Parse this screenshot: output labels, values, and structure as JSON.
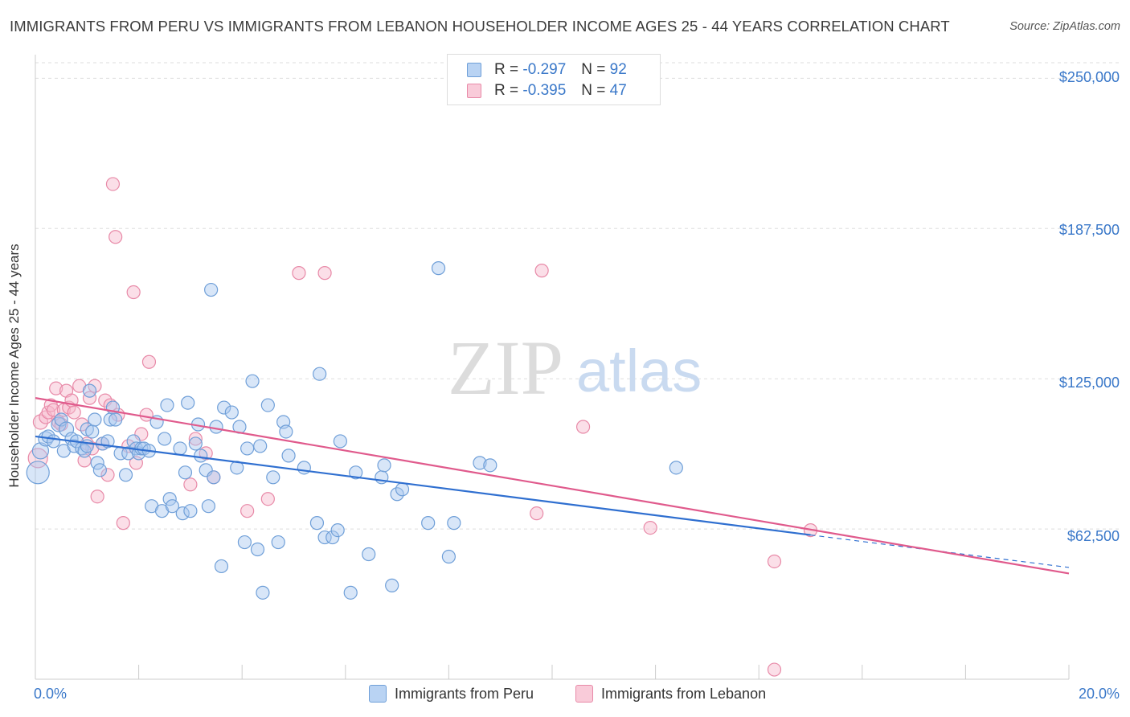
{
  "header": {
    "title": "IMMIGRANTS FROM PERU VS IMMIGRANTS FROM LEBANON HOUSEHOLDER INCOME AGES 25 - 44 YEARS CORRELATION CHART",
    "source": "Source: ZipAtlas.com"
  },
  "watermark": {
    "zip": "ZIP",
    "atlas": "atlas"
  },
  "legend": {
    "r_label": "R =",
    "n_label": "N =",
    "series": [
      {
        "r": "-0.297",
        "n": "92"
      },
      {
        "r": "-0.395",
        "n": "47"
      }
    ]
  },
  "colors": {
    "peru_fill": "#a9c8f0",
    "peru_stroke": "#6f9fd8",
    "peru_line": "#2f6fd0",
    "lebanon_fill": "#f6b8cc",
    "lebanon_stroke": "#e88aa8",
    "lebanon_line": "#e05a8c",
    "tick_text": "#3a78c9",
    "grid": "#dddddd"
  },
  "chart_data": {
    "type": "scatter",
    "title": "IMMIGRANTS FROM PERU VS IMMIGRANTS FROM LEBANON HOUSEHOLDER INCOME AGES 25 - 44 YEARS CORRELATION CHART",
    "xlabel": "",
    "ylabel": "Householder Income Ages 25 - 44 years",
    "xlim": [
      0,
      20
    ],
    "ylim": [
      0,
      262500
    ],
    "x_ticks": [
      "0.0%",
      "20.0%"
    ],
    "y_ticks": [
      {
        "value": 62500,
        "label": "$62,500"
      },
      {
        "value": 125000,
        "label": "$125,000"
      },
      {
        "value": 187500,
        "label": "$187,500"
      },
      {
        "value": 250000,
        "label": "$250,000"
      }
    ],
    "grid": true,
    "legend_position": "top-center",
    "series": [
      {
        "name": "Immigrants from Peru",
        "r": -0.297,
        "n": 92,
        "trend": {
          "x_start": 0,
          "y_start": 101000,
          "x_end": 15.0,
          "y_end": 60000,
          "dashed_to_x": 20,
          "dashed_to_y": 46500
        },
        "points": [
          [
            0.05,
            86000,
            14
          ],
          [
            0.1,
            95000,
            10
          ],
          [
            0.2,
            100000,
            9
          ],
          [
            0.25,
            101000,
            8
          ],
          [
            0.35,
            99000,
            8
          ],
          [
            0.45,
            106000,
            9
          ],
          [
            0.5,
            108000,
            8
          ],
          [
            0.55,
            95000,
            8
          ],
          [
            0.6,
            104000,
            9
          ],
          [
            0.7,
            100000,
            8
          ],
          [
            0.75,
            97000,
            8
          ],
          [
            0.8,
            99000,
            8
          ],
          [
            0.9,
            96000,
            8
          ],
          [
            0.95,
            95000,
            8
          ],
          [
            1.0,
            97000,
            8
          ],
          [
            1.0,
            104000,
            8
          ],
          [
            1.05,
            120000,
            8
          ],
          [
            1.1,
            103000,
            8
          ],
          [
            1.15,
            108000,
            8
          ],
          [
            1.2,
            90000,
            8
          ],
          [
            1.25,
            87000,
            8
          ],
          [
            1.3,
            98000,
            8
          ],
          [
            1.4,
            99000,
            8
          ],
          [
            1.45,
            108000,
            8
          ],
          [
            1.5,
            113000,
            8
          ],
          [
            1.55,
            108000,
            8
          ],
          [
            1.65,
            94000,
            8
          ],
          [
            1.75,
            85000,
            8
          ],
          [
            1.8,
            94000,
            8
          ],
          [
            1.9,
            99000,
            8
          ],
          [
            1.95,
            96000,
            8
          ],
          [
            2.0,
            94000,
            8
          ],
          [
            2.05,
            96000,
            8
          ],
          [
            2.1,
            96000,
            8
          ],
          [
            2.2,
            95000,
            8
          ],
          [
            2.25,
            72000,
            8
          ],
          [
            2.35,
            107000,
            8
          ],
          [
            2.45,
            70000,
            8
          ],
          [
            2.5,
            100000,
            8
          ],
          [
            2.55,
            114000,
            8
          ],
          [
            2.6,
            75000,
            8
          ],
          [
            2.65,
            72000,
            8
          ],
          [
            2.8,
            96000,
            8
          ],
          [
            2.85,
            69000,
            8
          ],
          [
            2.9,
            86000,
            8
          ],
          [
            2.95,
            115000,
            8
          ],
          [
            3.0,
            70000,
            8
          ],
          [
            3.1,
            98000,
            8
          ],
          [
            3.15,
            106000,
            8
          ],
          [
            3.2,
            93000,
            8
          ],
          [
            3.3,
            87000,
            8
          ],
          [
            3.35,
            72000,
            8
          ],
          [
            3.4,
            162000,
            8
          ],
          [
            3.45,
            84000,
            8
          ],
          [
            3.5,
            105000,
            8
          ],
          [
            3.6,
            47000,
            8
          ],
          [
            3.65,
            113000,
            8
          ],
          [
            3.8,
            111000,
            8
          ],
          [
            3.9,
            88000,
            8
          ],
          [
            3.95,
            105000,
            8
          ],
          [
            4.05,
            57000,
            8
          ],
          [
            4.1,
            96000,
            8
          ],
          [
            4.2,
            124000,
            8
          ],
          [
            4.3,
            54000,
            8
          ],
          [
            4.35,
            97000,
            8
          ],
          [
            4.4,
            36000,
            8
          ],
          [
            4.5,
            114000,
            8
          ],
          [
            4.6,
            84000,
            8
          ],
          [
            4.7,
            57000,
            8
          ],
          [
            4.8,
            107000,
            8
          ],
          [
            4.85,
            103000,
            8
          ],
          [
            4.9,
            93000,
            8
          ],
          [
            5.2,
            88000,
            8
          ],
          [
            5.45,
            65000,
            8
          ],
          [
            5.5,
            127000,
            8
          ],
          [
            5.6,
            59000,
            8
          ],
          [
            5.75,
            59000,
            8
          ],
          [
            5.85,
            62000,
            8
          ],
          [
            5.9,
            99000,
            8
          ],
          [
            6.1,
            36000,
            8
          ],
          [
            6.2,
            86000,
            8
          ],
          [
            6.45,
            52000,
            8
          ],
          [
            6.7,
            84000,
            8
          ],
          [
            6.75,
            89000,
            8
          ],
          [
            6.9,
            39000,
            8
          ],
          [
            7.0,
            77000,
            8
          ],
          [
            7.1,
            79000,
            8
          ],
          [
            7.6,
            65000,
            8
          ],
          [
            7.8,
            171000,
            8
          ],
          [
            8.0,
            51000,
            8
          ],
          [
            8.1,
            65000,
            8
          ],
          [
            8.6,
            90000,
            8
          ],
          [
            8.8,
            89000,
            8
          ],
          [
            12.4,
            88000,
            8
          ]
        ]
      },
      {
        "name": "Immigrants from Lebanon",
        "r": -0.395,
        "n": 47,
        "trend": {
          "x_start": 0,
          "y_start": 117000,
          "x_end": 20,
          "y_end": 44000
        },
        "points": [
          [
            0.05,
            92000,
            12
          ],
          [
            0.1,
            107000,
            9
          ],
          [
            0.2,
            109000,
            8
          ],
          [
            0.25,
            111000,
            8
          ],
          [
            0.3,
            114000,
            8
          ],
          [
            0.35,
            112000,
            8
          ],
          [
            0.4,
            121000,
            8
          ],
          [
            0.45,
            107000,
            8
          ],
          [
            0.5,
            106000,
            8
          ],
          [
            0.55,
            112000,
            8
          ],
          [
            0.6,
            120000,
            8
          ],
          [
            0.65,
            113000,
            8
          ],
          [
            0.7,
            116000,
            8
          ],
          [
            0.75,
            111000,
            8
          ],
          [
            0.85,
            122000,
            8
          ],
          [
            0.9,
            106000,
            8
          ],
          [
            0.95,
            91000,
            8
          ],
          [
            1.0,
            98000,
            8
          ],
          [
            1.05,
            117000,
            8
          ],
          [
            1.1,
            96000,
            8
          ],
          [
            1.15,
            122000,
            8
          ],
          [
            1.2,
            76000,
            8
          ],
          [
            1.3,
            98000,
            8
          ],
          [
            1.35,
            116000,
            8
          ],
          [
            1.4,
            85000,
            8
          ],
          [
            1.45,
            114000,
            8
          ],
          [
            1.5,
            206000,
            8
          ],
          [
            1.55,
            184000,
            8
          ],
          [
            1.6,
            110000,
            8
          ],
          [
            1.7,
            65000,
            8
          ],
          [
            1.8,
            97000,
            8
          ],
          [
            1.9,
            161000,
            8
          ],
          [
            1.95,
            90000,
            8
          ],
          [
            2.05,
            102000,
            8
          ],
          [
            2.15,
            110000,
            8
          ],
          [
            2.2,
            132000,
            8
          ],
          [
            3.0,
            81000,
            8
          ],
          [
            3.1,
            100000,
            8
          ],
          [
            3.3,
            94000,
            8
          ],
          [
            3.45,
            84000,
            8
          ],
          [
            4.1,
            70000,
            8
          ],
          [
            4.5,
            75000,
            8
          ],
          [
            5.1,
            169000,
            8
          ],
          [
            5.6,
            169000,
            8
          ],
          [
            9.8,
            170000,
            8
          ],
          [
            10.6,
            105000,
            8
          ],
          [
            11.9,
            63000,
            8
          ]
        ]
      }
    ],
    "extra_points_lebanon": [
      [
        9.7,
        69000,
        8
      ],
      [
        14.3,
        49000,
        8
      ],
      [
        15.0,
        62000,
        8
      ],
      [
        14.3,
        4000,
        8
      ]
    ]
  }
}
